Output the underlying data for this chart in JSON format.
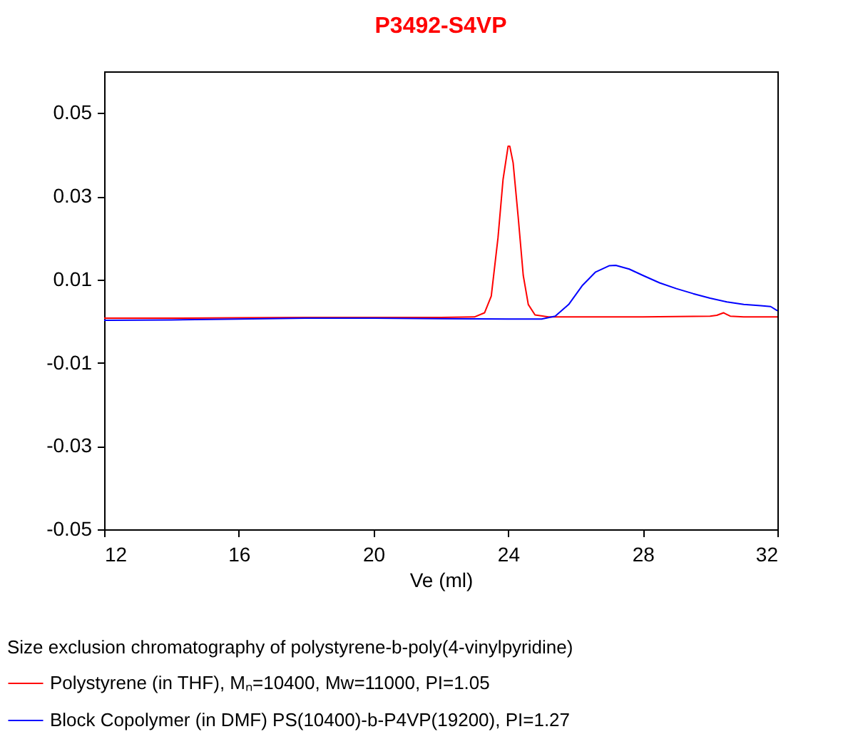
{
  "chart_data": {
    "type": "line",
    "title": "P3492-S4VP",
    "xlabel": "Ve (ml)",
    "legend_title": "Size exclusion chromatography of polystyrene-b-poly(4-vinylpyridine)",
    "xlim": [
      12,
      32
    ],
    "xticks": [
      12,
      16,
      20,
      24,
      28,
      32
    ],
    "ylim": [
      -0.05,
      0.06
    ],
    "yticks": [
      -0.05,
      -0.03,
      -0.01,
      0.01,
      0.03,
      0.05
    ],
    "grid": false,
    "legend": "bottom",
    "marker": "none",
    "line_style": "solid",
    "series": [
      {
        "name": "Polystyrene (in THF), Mₙ=10400, Mw=11000, PI=1.05",
        "color": "#ff0000",
        "x": [
          12,
          14,
          16,
          18,
          20,
          22,
          23.0,
          23.3,
          23.5,
          23.7,
          23.85,
          24.0,
          24.05,
          24.15,
          24.3,
          24.45,
          24.6,
          24.8,
          25.2,
          26,
          28,
          30,
          30.2,
          30.4,
          30.6,
          31,
          32
        ],
        "values": [
          0.0007,
          0.0007,
          0.0008,
          0.0009,
          0.0009,
          0.0009,
          0.001,
          0.002,
          0.006,
          0.02,
          0.034,
          0.042,
          0.042,
          0.038,
          0.025,
          0.011,
          0.004,
          0.0015,
          0.001,
          0.001,
          0.001,
          0.0012,
          0.0014,
          0.002,
          0.0012,
          0.001,
          0.001
        ]
      },
      {
        "name": "Block Copolymer (in DMF) PS(10400)-b-P4VP(19200), PI=1.27",
        "color": "#0000ff",
        "x": [
          12,
          14,
          16,
          18,
          20,
          22,
          24,
          25.0,
          25.4,
          25.8,
          26.2,
          26.6,
          27.0,
          27.2,
          27.6,
          28.0,
          28.5,
          29.0,
          29.5,
          30.0,
          30.5,
          31.0,
          31.5,
          31.8,
          32
        ],
        "values": [
          0.0002,
          0.0003,
          0.0005,
          0.0007,
          0.0007,
          0.0006,
          0.0005,
          0.0005,
          0.0012,
          0.004,
          0.0085,
          0.0118,
          0.0133,
          0.0134,
          0.0125,
          0.011,
          0.0092,
          0.0078,
          0.0066,
          0.0055,
          0.0046,
          0.004,
          0.0037,
          0.0035,
          0.0025
        ]
      }
    ]
  }
}
